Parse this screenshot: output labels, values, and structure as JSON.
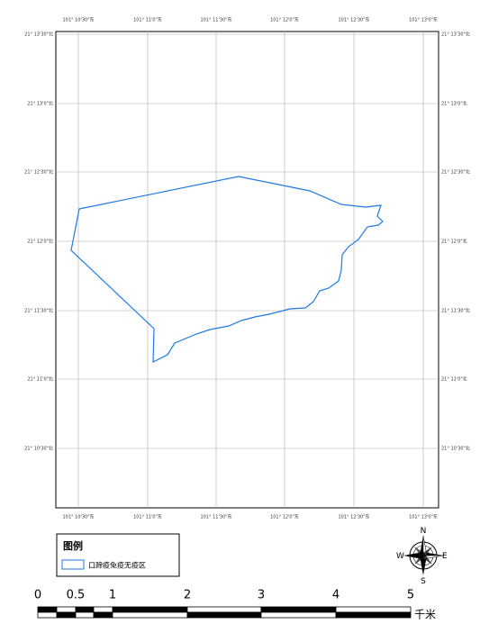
{
  "lon_labels": [
    "101° 10'30\"东",
    "101° 11'0\"东",
    "101° 11'30\"东",
    "101° 12'0\"东",
    "101° 12'30\"东",
    "101° 13'0\"东"
  ],
  "lat_labels": [
    "21° 13'30\"北",
    "21° 13'0\"北",
    "21° 12'30\"北",
    "21° 12'0\"北",
    "21° 11'30\"北",
    "21° 11'0\"北",
    "21° 10'30\"北"
  ],
  "legend": {
    "title": "图例",
    "item": "口蹄疫免疫无疫区"
  },
  "compass": {
    "north": "N",
    "east": "E",
    "south": "S",
    "west": "W"
  },
  "scale": {
    "labels": [
      "0",
      "0.5",
      "1",
      "2",
      "3",
      "4",
      "5"
    ],
    "unit": "千米"
  }
}
